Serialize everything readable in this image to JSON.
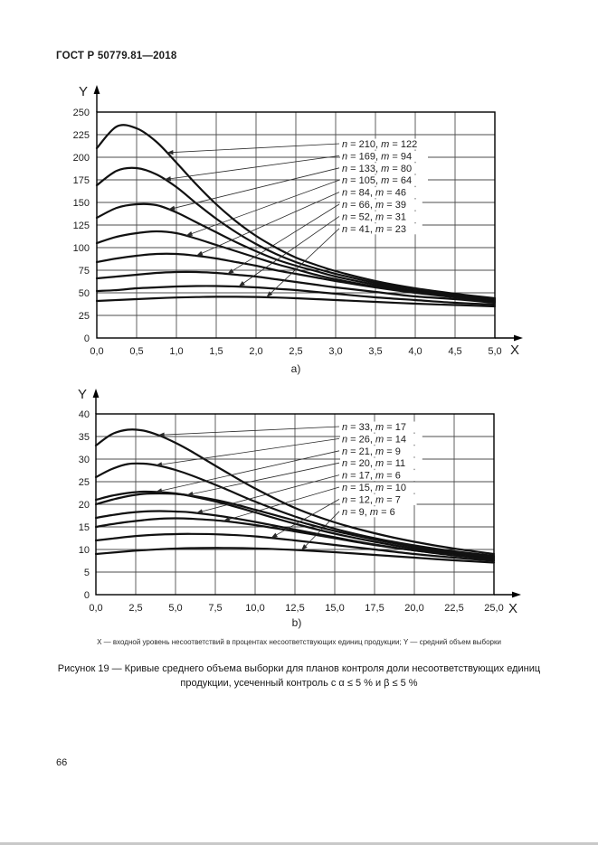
{
  "page": {
    "header": "ГОСТ Р 50779.81—2018",
    "page_number": "66"
  },
  "figure": {
    "axis_note": "X — входной уровень несоответствий в процентах несоответствующих единиц продукции; Y — средний объем выборки",
    "caption": "Рисунок 19 — Кривые среднего объема выборки для планов контроля доли несоответствующих единиц продукции, усеченный контроль с α ≤ 5 % и β ≤ 5 %"
  },
  "colors": {
    "curve": "#111111",
    "grid_vertical": "#9c9c9c",
    "grid_horizontal": "#4c4c4c",
    "border": "#000000",
    "text": "#1c1c1c",
    "leader": "#2a2a2a"
  },
  "chart_data": [
    {
      "id": "a",
      "type": "line",
      "sublabel": "a)",
      "xlabel": "X",
      "ylabel": "Y",
      "xlim": [
        0,
        5
      ],
      "ylim": [
        0,
        250
      ],
      "grid": true,
      "legend_position": "upper-right labels with leader arrows",
      "x_ticks": {
        "values": [
          0,
          0.5,
          1,
          1.5,
          2,
          2.5,
          3,
          3.5,
          4,
          4.5,
          5
        ],
        "labels": [
          "0,0",
          "0,5",
          "1,0",
          "1,5",
          "2,0",
          "2,5",
          "3,0",
          "3,5",
          "4,0",
          "4,5",
          "5,0"
        ]
      },
      "y_ticks": {
        "values": [
          0,
          25,
          50,
          75,
          100,
          125,
          150,
          175,
          200,
          225,
          250
        ],
        "labels": [
          "0",
          "25",
          "50",
          "75",
          "100",
          "125",
          "150",
          "175",
          "200",
          "225",
          "250"
        ]
      },
      "x": [
        0,
        0.25,
        0.5,
        0.75,
        1,
        1.25,
        1.5,
        1.75,
        2,
        2.25,
        2.5,
        2.75,
        3,
        3.5,
        4,
        4.5,
        5
      ],
      "series": [
        {
          "n": 210,
          "m": 122,
          "label": "n = 210, m = 122",
          "leader_tip_x": 0.88,
          "y": [
            210,
            234,
            232,
            217,
            194,
            170,
            148,
            129,
            113,
            100,
            89,
            81,
            74,
            63,
            55,
            49,
            44
          ]
        },
        {
          "n": 169,
          "m": 94,
          "label": "n = 169, m = 94",
          "leader_tip_x": 0.85,
          "y": [
            169,
            185,
            188,
            181,
            167,
            149,
            132,
            117,
            104,
            93,
            84,
            77,
            71,
            61,
            54,
            48,
            43
          ]
        },
        {
          "n": 133,
          "m": 80,
          "label": "n = 133, m = 80",
          "leader_tip_x": 0.9,
          "y": [
            133,
            144,
            148,
            147,
            139,
            128,
            117,
            106,
            96,
            87,
            80,
            74,
            68,
            59,
            52,
            47,
            42
          ]
        },
        {
          "n": 105,
          "m": 64,
          "label": "n = 105, m = 64",
          "leader_tip_x": 1.12,
          "y": [
            105,
            112,
            116,
            118,
            116,
            110,
            103,
            96,
            89,
            82,
            76,
            70,
            65,
            57,
            51,
            46,
            41
          ]
        },
        {
          "n": 84,
          "m": 46,
          "label": "n = 84, m = 46",
          "leader_tip_x": 1.25,
          "y": [
            84,
            88,
            91,
            93,
            93,
            91,
            88,
            84,
            80,
            75,
            71,
            67,
            63,
            56,
            50,
            45,
            40
          ]
        },
        {
          "n": 66,
          "m": 39,
          "label": "n = 66, m = 39",
          "leader_tip_x": 1.64,
          "y": [
            66,
            68,
            70,
            72,
            73,
            73,
            72,
            70,
            68,
            65,
            62,
            59,
            56,
            51,
            46,
            43,
            39
          ]
        },
        {
          "n": 52,
          "m": 31,
          "label": "n = 52, m = 31",
          "leader_tip_x": 1.78,
          "y": [
            52,
            53,
            55,
            56,
            57,
            57.5,
            57.5,
            57,
            56,
            54.5,
            53,
            51,
            49,
            45,
            42,
            39,
            37
          ]
        },
        {
          "n": 41,
          "m": 23,
          "label": "n = 41, m = 23",
          "leader_tip_x": 2.13,
          "y": [
            41,
            42,
            43,
            44,
            44.8,
            45.3,
            45.6,
            45.6,
            45.4,
            44.8,
            44,
            43,
            42,
            40,
            38,
            36.5,
            35
          ]
        }
      ]
    },
    {
      "id": "b",
      "type": "line",
      "sublabel": "b)",
      "xlabel": "X",
      "ylabel": "Y",
      "xlim": [
        0,
        25
      ],
      "ylim": [
        0,
        40
      ],
      "grid": true,
      "legend_position": "upper-right labels with leader arrows",
      "x_ticks": {
        "values": [
          0,
          2.5,
          5,
          7.5,
          10,
          12.5,
          15,
          17.5,
          20,
          22.5,
          25
        ],
        "labels": [
          "0,0",
          "2,5",
          "5,0",
          "7,5",
          "10,0",
          "12,5",
          "15,0",
          "17,5",
          "20,0",
          "22,5",
          "25,0"
        ]
      },
      "y_ticks": {
        "values": [
          0,
          5,
          10,
          15,
          20,
          25,
          30,
          35,
          40
        ],
        "labels": [
          "0",
          "5",
          "10",
          "15",
          "20",
          "25",
          "30",
          "35",
          "40"
        ]
      },
      "x": [
        0,
        1,
        2,
        3,
        4,
        5,
        6,
        8,
        10,
        12.5,
        15,
        17.5,
        20,
        22.5,
        25
      ],
      "series": [
        {
          "n": 33,
          "m": 17,
          "label": "n = 33, m = 17",
          "leader_tip_x": 3.9,
          "y": [
            33,
            35.5,
            36.5,
            36.3,
            35.2,
            33.6,
            31.7,
            27.5,
            23.5,
            19.2,
            16,
            13.6,
            11.7,
            10.2,
            9
          ]
        },
        {
          "n": 26,
          "m": 14,
          "label": "n = 26, m = 14",
          "leader_tip_x": 3.75,
          "y": [
            26,
            27.8,
            28.9,
            29,
            28.5,
            27.6,
            26.4,
            23.6,
            20.6,
            17.3,
            14.6,
            12.5,
            10.9,
            9.6,
            8.6
          ]
        },
        {
          "n": 21,
          "m": 9,
          "label": "n = 21, m = 9",
          "leader_tip_x": 3.75,
          "y": [
            21,
            21.9,
            22.5,
            22.8,
            22.7,
            22.4,
            21.8,
            20.2,
            18.2,
            15.7,
            13.5,
            11.7,
            10.2,
            9.1,
            8.2
          ]
        },
        {
          "n": 20,
          "m": 11,
          "label": "n = 20, m = 11",
          "leader_tip_x": 5.7,
          "y": [
            20,
            21,
            21.8,
            22.3,
            22.4,
            22.3,
            21.9,
            20.6,
            18.8,
            16.4,
            14.1,
            12.2,
            10.6,
            9.3,
            8.4
          ]
        },
        {
          "n": 17,
          "m": 6,
          "label": "n = 17, m = 6",
          "leader_tip_x": 6.3,
          "y": [
            17,
            17.6,
            18.1,
            18.4,
            18.5,
            18.4,
            18.2,
            17.3,
            16.1,
            14.4,
            12.7,
            11.1,
            9.8,
            8.7,
            7.9
          ]
        },
        {
          "n": 15,
          "m": 10,
          "label": "n = 15, m = 10",
          "leader_tip_x": 8,
          "y": [
            15,
            15.6,
            16.1,
            16.5,
            16.8,
            16.9,
            16.8,
            16.3,
            15.4,
            14,
            12.5,
            11,
            9.8,
            8.7,
            7.8
          ]
        },
        {
          "n": 12,
          "m": 7,
          "label": "n = 12, m = 7",
          "leader_tip_x": 11,
          "y": [
            12,
            12.4,
            12.8,
            13.1,
            13.3,
            13.4,
            13.45,
            13.3,
            12.9,
            12,
            11,
            10,
            9,
            8.2,
            7.5
          ]
        },
        {
          "n": 9,
          "m": 6,
          "label": "n = 9, m = 6",
          "leader_tip_x": 12.9,
          "y": [
            9,
            9.3,
            9.6,
            9.85,
            10.05,
            10.2,
            10.3,
            10.35,
            10.25,
            9.9,
            9.4,
            8.8,
            8.2,
            7.6,
            7.1
          ]
        }
      ]
    }
  ]
}
